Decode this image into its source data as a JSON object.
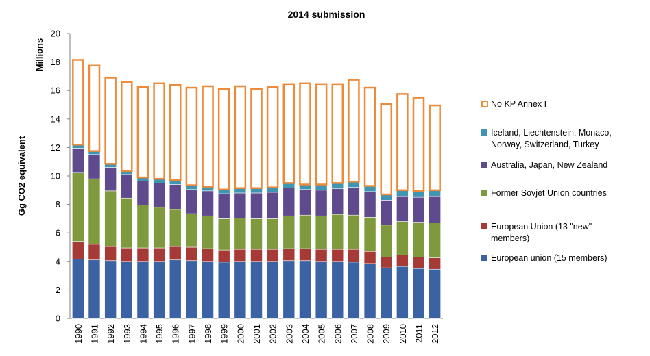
{
  "chart_data": {
    "type": "bar",
    "stacked": true,
    "title": "2014 submission",
    "ylabel": "Gg CO2 equivalent",
    "yunit_label": "Millions",
    "ylim": [
      0,
      20
    ],
    "yticks": [
      0,
      2,
      4,
      6,
      8,
      10,
      12,
      14,
      16,
      18,
      20
    ],
    "grid": false,
    "legend_position": "right",
    "categories": [
      "1990",
      "1991",
      "1992",
      "1993",
      "1994",
      "1995",
      "1996",
      "1997",
      "1998",
      "1999",
      "2000",
      "2001",
      "2002",
      "2003",
      "2004",
      "2005",
      "2006",
      "2007",
      "2008",
      "2009",
      "2010",
      "2011",
      "2012"
    ],
    "series": [
      {
        "name": "European union (15 members)",
        "color": "#3B63A4",
        "values": [
          4.15,
          4.1,
          4.05,
          4.0,
          4.0,
          4.0,
          4.1,
          4.05,
          4.0,
          3.95,
          4.0,
          4.0,
          4.0,
          4.05,
          4.05,
          4.0,
          4.0,
          3.95,
          3.85,
          3.55,
          3.65,
          3.5,
          3.45
        ]
      },
      {
        "name": "European Union (13 \"new\" members)",
        "color": "#A63A36",
        "values": [
          1.25,
          1.1,
          1.0,
          0.95,
          0.95,
          0.95,
          0.95,
          0.95,
          0.9,
          0.85,
          0.85,
          0.85,
          0.85,
          0.85,
          0.85,
          0.85,
          0.85,
          0.9,
          0.85,
          0.75,
          0.8,
          0.8,
          0.8
        ]
      },
      {
        "name": "Former Sovjet Union countries",
        "color": "#7F9A3D",
        "values": [
          4.85,
          4.6,
          3.9,
          3.5,
          3.0,
          2.85,
          2.6,
          2.35,
          2.3,
          2.2,
          2.2,
          2.15,
          2.15,
          2.3,
          2.35,
          2.35,
          2.45,
          2.4,
          2.4,
          2.25,
          2.35,
          2.45,
          2.45
        ]
      },
      {
        "name": "Australia, Japan, New Zealand",
        "color": "#5E4A8D",
        "values": [
          1.7,
          1.7,
          1.65,
          1.65,
          1.7,
          1.7,
          1.75,
          1.7,
          1.75,
          1.75,
          1.75,
          1.8,
          1.85,
          1.95,
          1.8,
          1.8,
          1.8,
          1.95,
          1.8,
          1.75,
          1.75,
          1.75,
          1.85
        ]
      },
      {
        "name": "Iceland, Liechtenstein, Monaco, Norway, Switzerland, Turkey",
        "color": "#3F95B2",
        "values": [
          0.25,
          0.25,
          0.25,
          0.25,
          0.25,
          0.3,
          0.3,
          0.3,
          0.3,
          0.3,
          0.35,
          0.35,
          0.35,
          0.35,
          0.35,
          0.4,
          0.4,
          0.4,
          0.4,
          0.4,
          0.45,
          0.45,
          0.45
        ]
      },
      {
        "name": "No KP Annex I",
        "color": "#ED8B3B",
        "hollow": true,
        "values": [
          5.95,
          6.0,
          6.05,
          6.25,
          6.35,
          6.7,
          6.7,
          6.85,
          7.05,
          7.05,
          7.15,
          6.95,
          7.05,
          6.95,
          7.1,
          7.05,
          6.95,
          7.15,
          6.9,
          6.35,
          6.75,
          6.55,
          5.95
        ]
      }
    ]
  }
}
